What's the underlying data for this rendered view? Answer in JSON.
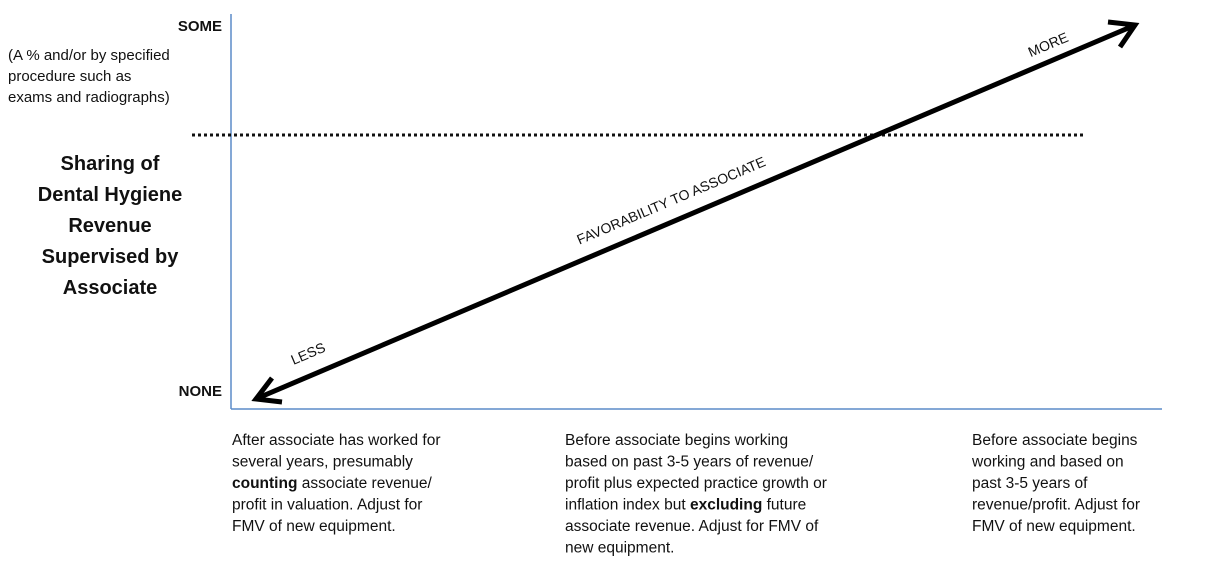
{
  "y_axis": {
    "top_label": "SOME",
    "top_note": [
      "(A % and/or by specified",
      "procedure such as",
      "exams and radiographs)"
    ],
    "title": [
      "Sharing of",
      "Dental Hygiene",
      "Revenue",
      "Supervised by",
      "Associate"
    ],
    "bottom_label": "NONE"
  },
  "arrow": {
    "start_label": "LESS",
    "middle_label": "FAVORABILITY TO ASSOCIATE",
    "end_label": "MORE"
  },
  "columns": [
    {
      "lines": [
        "After associate has worked for",
        "several years, presumably",
        [
          {
            "b": "counting"
          },
          " associate revenue/"
        ],
        "profit in valuation.  Adjust for",
        "FMV of new equipment."
      ]
    },
    {
      "lines": [
        "Before associate begins working",
        "based on past 3-5 years of revenue/",
        "profit plus expected practice growth or",
        [
          "inflation index but ",
          {
            "b": "excluding"
          },
          " future"
        ],
        "associate revenue.  Adjust for FMV of",
        "new equipment."
      ]
    },
    {
      "lines": [
        "Before associate begins",
        "working and based on",
        "past 3-5 years of",
        "revenue/profit.  Adjust for",
        "FMV of new equipment."
      ]
    }
  ]
}
